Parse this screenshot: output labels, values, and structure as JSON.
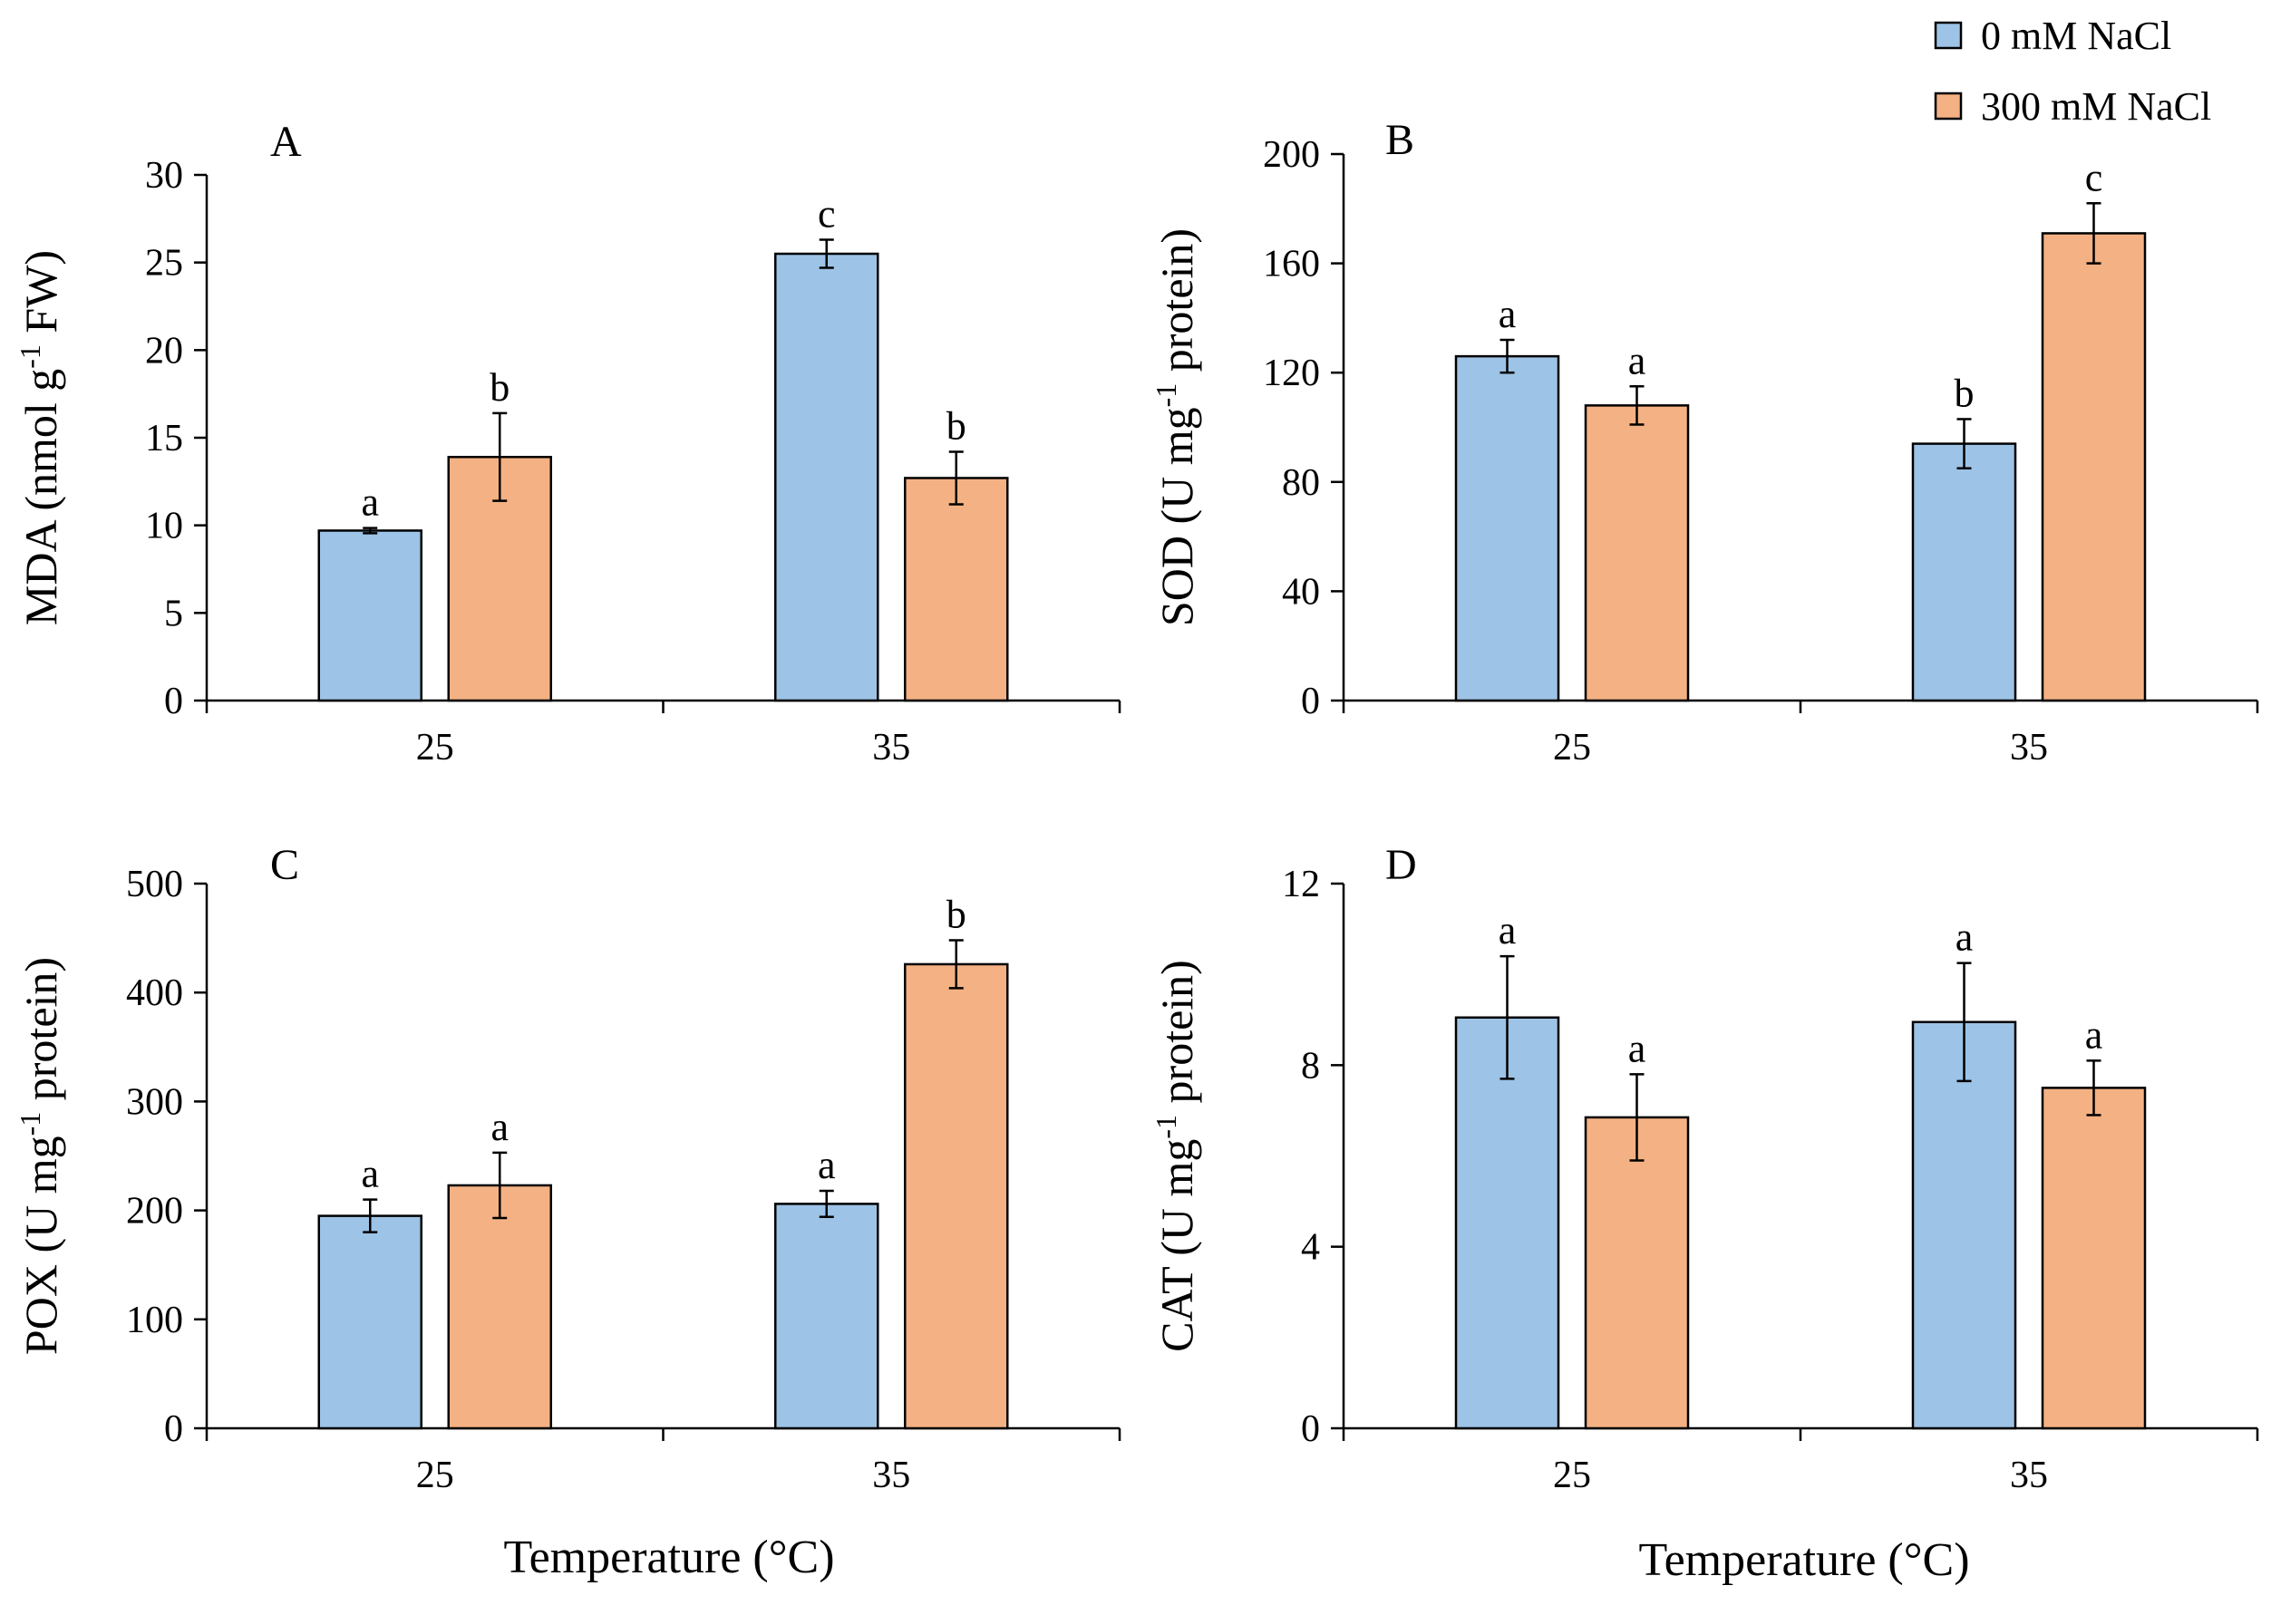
{
  "legend": {
    "items": [
      {
        "label": "0 mM NaCl",
        "color": "#9DC3E6"
      },
      {
        "label": "300 mM NaCl",
        "color": "#F4B183"
      }
    ]
  },
  "x_title": "Temperature (°C)",
  "chart_data": [
    {
      "type": "bar",
      "panel": "A",
      "ylabel_main": "MDA (nmol g",
      "ylabel_sup": "-1",
      "ylabel_tail": " FW)",
      "categories": [
        "25",
        "35"
      ],
      "ylim": [
        0,
        30
      ],
      "yticks": [
        0,
        5,
        10,
        15,
        20,
        25,
        30
      ],
      "series": [
        {
          "name": "0 mM NaCl",
          "values": [
            9.7,
            25.5
          ],
          "errors": [
            0.15,
            0.8
          ],
          "letters": [
            "a",
            "c"
          ]
        },
        {
          "name": "300 mM NaCl",
          "values": [
            13.9,
            12.7
          ],
          "errors": [
            2.5,
            1.5
          ],
          "letters": [
            "b",
            "b"
          ]
        }
      ]
    },
    {
      "type": "bar",
      "panel": "B",
      "ylabel_main": "SOD (U mg",
      "ylabel_sup": "-1",
      "ylabel_tail": " protein)",
      "categories": [
        "25",
        "35"
      ],
      "ylim": [
        0,
        200
      ],
      "yticks": [
        0,
        40,
        80,
        120,
        160,
        200
      ],
      "series": [
        {
          "name": "0 mM NaCl",
          "values": [
            126,
            94
          ],
          "errors": [
            6,
            9
          ],
          "letters": [
            "a",
            "b"
          ]
        },
        {
          "name": "300 mM NaCl",
          "values": [
            108,
            171
          ],
          "errors": [
            7,
            11
          ],
          "letters": [
            "a",
            "c"
          ]
        }
      ]
    },
    {
      "type": "bar",
      "panel": "C",
      "ylabel_main": "POX (U mg",
      "ylabel_sup": "-1",
      "ylabel_tail": " protein)",
      "categories": [
        "25",
        "35"
      ],
      "ylim": [
        0,
        500
      ],
      "yticks": [
        0,
        100,
        200,
        300,
        400,
        500
      ],
      "series": [
        {
          "name": "0 mM NaCl",
          "values": [
            195,
            206
          ],
          "errors": [
            15,
            12
          ],
          "letters": [
            "a",
            "a"
          ]
        },
        {
          "name": "300 mM NaCl",
          "values": [
            223,
            426
          ],
          "errors": [
            30,
            22
          ],
          "letters": [
            "a",
            "b"
          ]
        }
      ]
    },
    {
      "type": "bar",
      "panel": "D",
      "ylabel_main": "CAT (U mg",
      "ylabel_sup": "-1",
      "ylabel_tail": " protein)",
      "categories": [
        "25",
        "35"
      ],
      "ylim": [
        0,
        12
      ],
      "yticks": [
        0,
        4,
        8,
        12
      ],
      "series": [
        {
          "name": "0 mM NaCl",
          "values": [
            9.05,
            8.95
          ],
          "errors": [
            1.35,
            1.3
          ],
          "letters": [
            "a",
            "a"
          ]
        },
        {
          "name": "300 mM NaCl",
          "values": [
            6.85,
            7.5
          ],
          "errors": [
            0.95,
            0.6
          ],
          "letters": [
            "a",
            "a"
          ]
        }
      ]
    }
  ]
}
